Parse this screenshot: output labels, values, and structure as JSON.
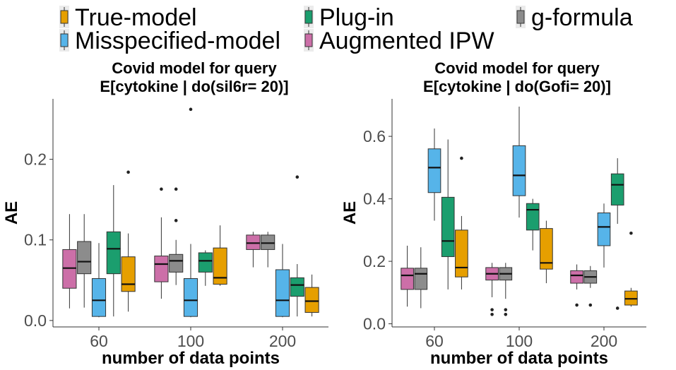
{
  "legend": {
    "items": [
      {
        "label": "True-model",
        "color": "#E69F00"
      },
      {
        "label": "Plug-in",
        "color": "#1B9E6E"
      },
      {
        "label": "g-formula",
        "color": "#8C8C8C"
      },
      {
        "label": "Misspecified-model",
        "color": "#56B4E9"
      },
      {
        "label": "Augmented IPW",
        "color": "#CC6FA8"
      }
    ]
  },
  "chart_data": [
    {
      "type": "boxplot",
      "title": [
        "Covid model for query",
        "E[cytokine | do(sil6r= 20)]"
      ],
      "xlabel": "number of data points",
      "ylabel": "AE",
      "categories": [
        "60",
        "100",
        "200"
      ],
      "ylim": [
        -0.008,
        0.275
      ],
      "yticks": [
        0.0,
        0.1,
        0.2
      ],
      "ytick_labels": [
        "0.0",
        "0.1",
        "0.2"
      ],
      "series": [
        {
          "name": "Augmented IPW",
          "boxes": [
            {
              "min": 0.015,
              "q1": 0.04,
              "median": 0.065,
              "q3": 0.088,
              "max": 0.132,
              "outliers": []
            },
            {
              "min": 0.027,
              "q1": 0.048,
              "median": 0.07,
              "q3": 0.08,
              "max": 0.128,
              "outliers": [
                0.163
              ]
            },
            {
              "min": 0.066,
              "q1": 0.088,
              "median": 0.096,
              "q3": 0.106,
              "max": 0.11,
              "outliers": []
            }
          ]
        },
        {
          "name": "g-formula",
          "boxes": [
            {
              "min": 0.016,
              "q1": 0.058,
              "median": 0.073,
              "q3": 0.098,
              "max": 0.132,
              "outliers": []
            },
            {
              "min": 0.044,
              "q1": 0.06,
              "median": 0.074,
              "q3": 0.082,
              "max": 0.1,
              "outliers": [
                0.124,
                0.163
              ]
            },
            {
              "min": 0.066,
              "q1": 0.088,
              "median": 0.096,
              "q3": 0.106,
              "max": 0.11,
              "outliers": []
            }
          ]
        },
        {
          "name": "Misspecified-model",
          "boxes": [
            {
              "min": 0.004,
              "q1": 0.005,
              "median": 0.025,
              "q3": 0.052,
              "max": 0.096,
              "outliers": []
            },
            {
              "min": 0.004,
              "q1": 0.005,
              "median": 0.025,
              "q3": 0.052,
              "max": 0.095,
              "outliers": [
                0.262
              ]
            },
            {
              "min": 0.004,
              "q1": 0.005,
              "median": 0.025,
              "q3": 0.063,
              "max": 0.095,
              "outliers": []
            }
          ]
        },
        {
          "name": "Plug-in",
          "boxes": [
            {
              "min": 0.005,
              "q1": 0.058,
              "median": 0.089,
              "q3": 0.11,
              "max": 0.168,
              "outliers": []
            },
            {
              "min": 0.043,
              "q1": 0.06,
              "median": 0.074,
              "q3": 0.084,
              "max": 0.087,
              "outliers": []
            },
            {
              "min": 0.005,
              "q1": 0.03,
              "median": 0.044,
              "q3": 0.053,
              "max": 0.07,
              "outliers": [
                0.178
              ]
            }
          ]
        },
        {
          "name": "True-model",
          "boxes": [
            {
              "min": 0.011,
              "q1": 0.036,
              "median": 0.045,
              "q3": 0.079,
              "max": 0.108,
              "outliers": [
                0.184
              ]
            },
            {
              "min": 0.043,
              "q1": 0.045,
              "median": 0.053,
              "q3": 0.09,
              "max": 0.118,
              "outliers": []
            },
            {
              "min": 0.005,
              "q1": 0.01,
              "median": 0.024,
              "q3": 0.041,
              "max": 0.057,
              "outliers": []
            }
          ]
        }
      ]
    },
    {
      "type": "boxplot",
      "title": [
        "Covid model for query",
        "E[cytokine | do(Gofi= 20)]"
      ],
      "xlabel": "number of data points",
      "ylabel": "AE",
      "categories": [
        "60",
        "100",
        "200"
      ],
      "ylim": [
        -0.01,
        0.72
      ],
      "yticks": [
        0.0,
        0.2,
        0.4,
        0.6
      ],
      "ytick_labels": [
        "0.0",
        "0.2",
        "0.4",
        "0.6"
      ],
      "series": [
        {
          "name": "Augmented IPW",
          "boxes": [
            {
              "min": 0.055,
              "q1": 0.11,
              "median": 0.155,
              "q3": 0.178,
              "max": 0.25,
              "outliers": []
            },
            {
              "min": 0.085,
              "q1": 0.14,
              "median": 0.16,
              "q3": 0.18,
              "max": 0.195,
              "outliers": [
                0.03,
                0.045
              ]
            },
            {
              "min": 0.11,
              "q1": 0.13,
              "median": 0.155,
              "q3": 0.17,
              "max": 0.19,
              "outliers": [
                0.06
              ]
            }
          ]
        },
        {
          "name": "g-formula",
          "boxes": [
            {
              "min": 0.05,
              "q1": 0.11,
              "median": 0.16,
              "q3": 0.178,
              "max": 0.245,
              "outliers": []
            },
            {
              "min": 0.08,
              "q1": 0.14,
              "median": 0.16,
              "q3": 0.18,
              "max": 0.195,
              "outliers": [
                0.03,
                0.045
              ]
            },
            {
              "min": 0.115,
              "q1": 0.13,
              "median": 0.15,
              "q3": 0.17,
              "max": 0.185,
              "outliers": [
                0.06
              ]
            }
          ]
        },
        {
          "name": "Misspecified-model",
          "boxes": [
            {
              "min": 0.33,
              "q1": 0.42,
              "median": 0.5,
              "q3": 0.56,
              "max": 0.625,
              "outliers": []
            },
            {
              "min": 0.34,
              "q1": 0.41,
              "median": 0.475,
              "q3": 0.57,
              "max": 0.695,
              "outliers": []
            },
            {
              "min": 0.18,
              "q1": 0.25,
              "median": 0.31,
              "q3": 0.355,
              "max": 0.385,
              "outliers": []
            }
          ]
        },
        {
          "name": "Plug-in",
          "boxes": [
            {
              "min": 0.11,
              "q1": 0.215,
              "median": 0.265,
              "q3": 0.405,
              "max": 0.59,
              "outliers": []
            },
            {
              "min": 0.235,
              "q1": 0.3,
              "median": 0.365,
              "q3": 0.385,
              "max": 0.4,
              "outliers": []
            },
            {
              "min": 0.32,
              "q1": 0.38,
              "median": 0.445,
              "q3": 0.48,
              "max": 0.53,
              "outliers": [
                0.05
              ]
            }
          ]
        },
        {
          "name": "True-model",
          "boxes": [
            {
              "min": 0.11,
              "q1": 0.15,
              "median": 0.18,
              "q3": 0.3,
              "max": 0.345,
              "outliers": [
                0.53
              ]
            },
            {
              "min": 0.13,
              "q1": 0.175,
              "median": 0.195,
              "q3": 0.305,
              "max": 0.33,
              "outliers": []
            },
            {
              "min": 0.055,
              "q1": 0.06,
              "median": 0.08,
              "q3": 0.105,
              "max": 0.115,
              "outliers": [
                0.29
              ]
            }
          ]
        }
      ]
    }
  ]
}
